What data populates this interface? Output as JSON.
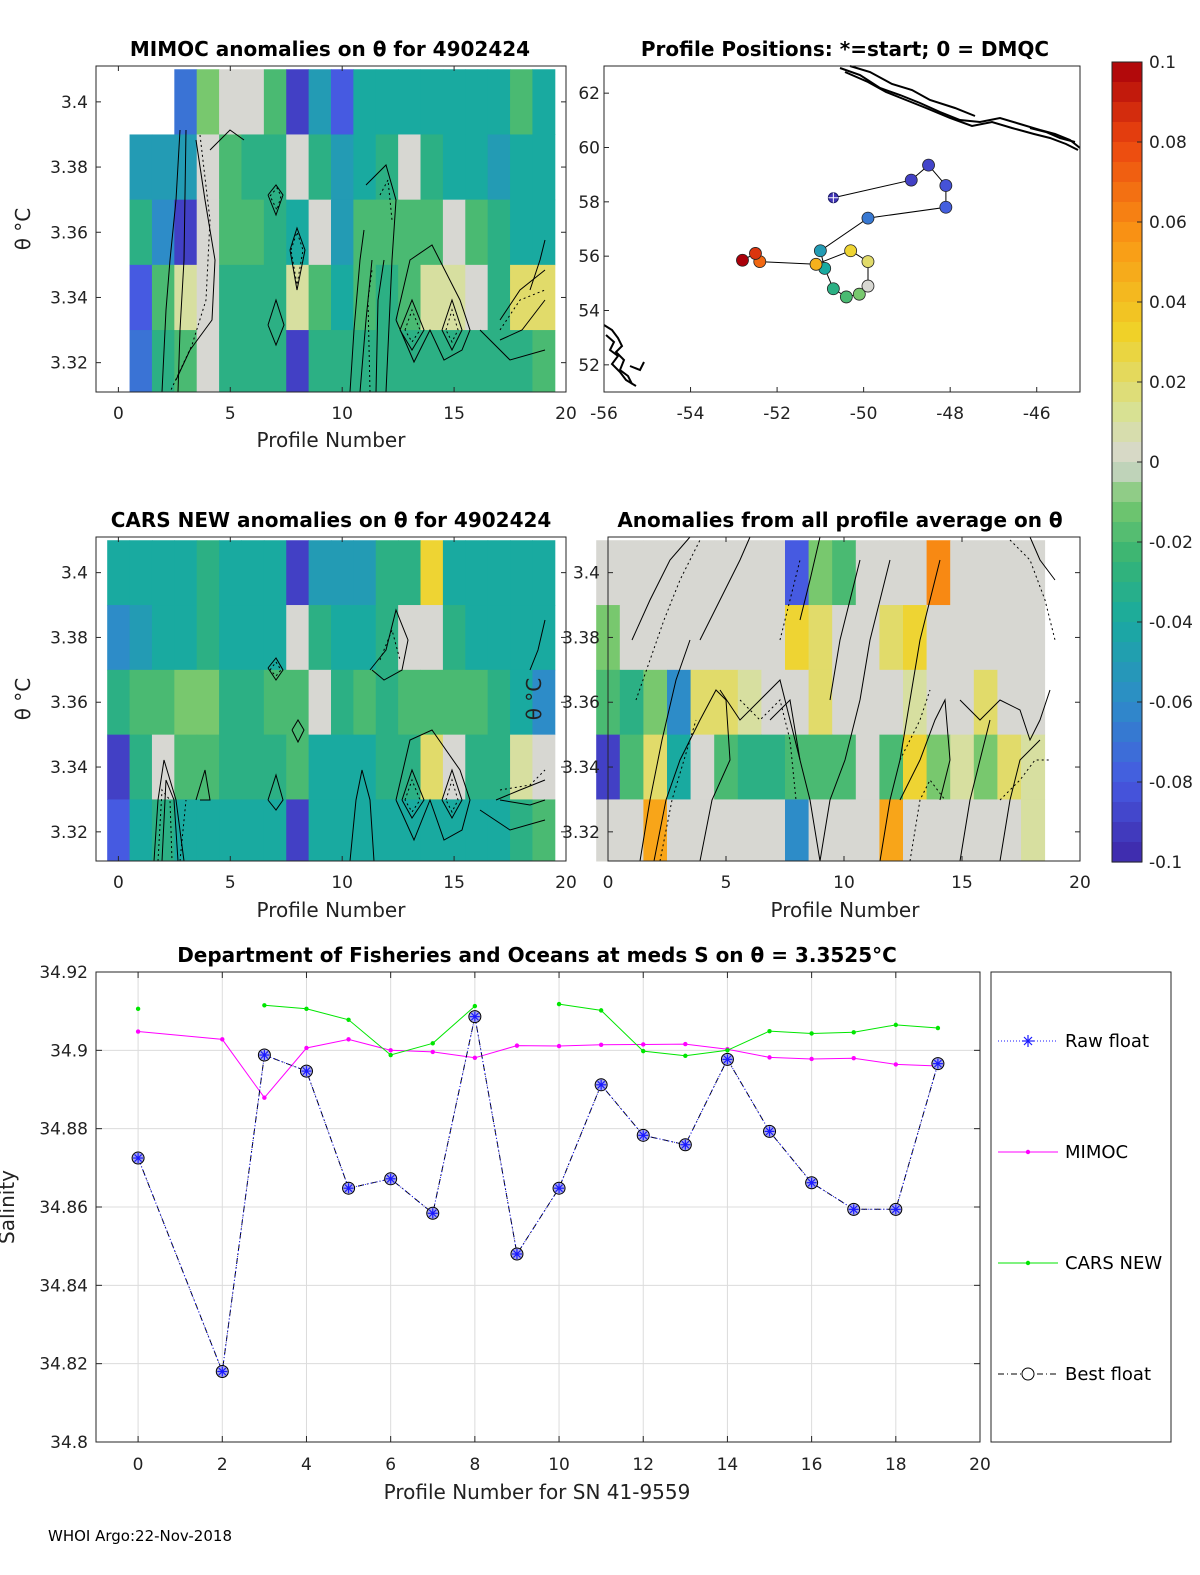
{
  "footer": "WHOI Argo:22-Nov-2018",
  "colorbar": {
    "ticks": [
      "0.1",
      "0.08",
      "0.06",
      "0.04",
      "0.02",
      "0",
      "-0.02",
      "-0.04",
      "-0.06",
      "-0.08",
      "-0.1"
    ],
    "range": [
      -0.1,
      0.1
    ]
  },
  "chart_data": [
    {
      "id": "mimoc",
      "type": "heatmap",
      "title": "MIMOC anomalies on θ  for 4902424",
      "xlabel": "Profile Number",
      "ylabel": "θ °C",
      "xticks": [
        "0",
        "5",
        "10",
        "15",
        "20"
      ],
      "yticks": [
        "3.4",
        "3.38",
        "3.36",
        "3.34",
        "3.32"
      ],
      "xlim": [
        -1,
        20
      ],
      "ylim": [
        3.311,
        3.411
      ],
      "theta_rows": [
        3.4,
        3.38,
        3.36,
        3.34,
        3.32
      ],
      "values": [
        [
          null,
          null,
          null,
          -0.07,
          -0.01,
          0.0,
          0.0,
          -0.02,
          -0.09,
          -0.05,
          -0.08,
          -0.04,
          -0.04,
          -0.04,
          -0.04,
          -0.04,
          -0.04,
          -0.04,
          -0.02,
          -0.04
        ],
        [
          null,
          -0.05,
          -0.05,
          -0.05,
          0.0,
          -0.02,
          -0.03,
          -0.03,
          0.0,
          -0.03,
          -0.05,
          -0.04,
          -0.03,
          0.0,
          -0.03,
          -0.04,
          -0.04,
          -0.05,
          -0.04,
          -0.04
        ],
        [
          null,
          -0.03,
          -0.06,
          -0.09,
          0.0,
          -0.02,
          -0.02,
          -0.03,
          -0.04,
          0.0,
          -0.05,
          -0.02,
          -0.02,
          -0.02,
          -0.02,
          0.0,
          -0.02,
          -0.03,
          -0.04,
          -0.04
        ],
        [
          null,
          -0.08,
          -0.02,
          0.01,
          0.0,
          -0.03,
          -0.03,
          -0.03,
          0.01,
          -0.02,
          -0.04,
          -0.02,
          -0.03,
          -0.02,
          0.01,
          0.01,
          0.0,
          -0.03,
          0.02,
          0.02
        ],
        [
          null,
          -0.07,
          -0.03,
          -0.02,
          0.0,
          -0.03,
          -0.03,
          -0.03,
          -0.09,
          -0.03,
          -0.03,
          -0.03,
          -0.03,
          -0.03,
          -0.03,
          -0.03,
          -0.03,
          -0.03,
          -0.03,
          -0.02
        ]
      ]
    },
    {
      "id": "positions",
      "type": "scatter",
      "title": "Profile Positions: *=start; 0 = DMQC",
      "xticks": [
        "-56",
        "-54",
        "-52",
        "-50",
        "-48",
        "-46"
      ],
      "yticks": [
        "62",
        "60",
        "58",
        "56",
        "54",
        "52"
      ],
      "xlim": [
        -56.0,
        -45.0
      ],
      "ylim": [
        51.0,
        63.0
      ],
      "points": [
        {
          "lon": -50.7,
          "lat": 58.15,
          "v": -0.095
        },
        {
          "lon": -48.9,
          "lat": 58.8,
          "v": -0.09
        },
        {
          "lon": -48.5,
          "lat": 59.35,
          "v": -0.088
        },
        {
          "lon": -48.1,
          "lat": 58.6,
          "v": -0.083
        },
        {
          "lon": -48.1,
          "lat": 57.8,
          "v": -0.078
        },
        {
          "lon": -49.9,
          "lat": 57.4,
          "v": -0.068
        },
        {
          "lon": -51.0,
          "lat": 56.2,
          "v": -0.05
        },
        {
          "lon": -50.9,
          "lat": 55.55,
          "v": -0.04
        },
        {
          "lon": -50.7,
          "lat": 54.8,
          "v": -0.03
        },
        {
          "lon": -50.4,
          "lat": 54.5,
          "v": -0.02
        },
        {
          "lon": -50.1,
          "lat": 54.6,
          "v": -0.01
        },
        {
          "lon": -49.9,
          "lat": 54.9,
          "v": 0.0
        },
        {
          "lon": -49.9,
          "lat": 55.8,
          "v": 0.02
        },
        {
          "lon": -50.3,
          "lat": 56.2,
          "v": 0.03
        },
        {
          "lon": -51.1,
          "lat": 55.7,
          "v": 0.045
        },
        {
          "lon": -52.4,
          "lat": 55.8,
          "v": 0.07
        },
        {
          "lon": -52.5,
          "lat": 56.1,
          "v": 0.085
        },
        {
          "lon": -52.8,
          "lat": 55.85,
          "v": 0.1
        }
      ]
    },
    {
      "id": "cars",
      "type": "heatmap",
      "title": "CARS NEW anomalies on θ for 4902424",
      "xlabel": "Profile Number",
      "ylabel": "θ °C",
      "xticks": [
        "0",
        "5",
        "10",
        "15",
        "20"
      ],
      "yticks": [
        "3.4",
        "3.38",
        "3.36",
        "3.34",
        "3.32"
      ],
      "xlim": [
        -1,
        20
      ],
      "ylim": [
        3.311,
        3.411
      ],
      "theta_rows": [
        3.4,
        3.38,
        3.36,
        3.34,
        3.32
      ],
      "values": [
        [
          -0.04,
          -0.04,
          -0.04,
          -0.04,
          -0.03,
          -0.04,
          -0.04,
          -0.04,
          -0.09,
          -0.05,
          -0.05,
          -0.05,
          -0.03,
          -0.03,
          0.03,
          -0.04,
          -0.04,
          -0.04,
          -0.04,
          -0.04
        ],
        [
          -0.06,
          -0.05,
          -0.04,
          -0.04,
          -0.03,
          -0.04,
          -0.04,
          -0.04,
          0.0,
          -0.03,
          -0.04,
          -0.04,
          -0.03,
          0.0,
          0.0,
          -0.03,
          -0.04,
          -0.04,
          -0.04,
          -0.04
        ],
        [
          -0.03,
          -0.02,
          -0.02,
          -0.01,
          -0.01,
          -0.03,
          -0.03,
          -0.02,
          -0.02,
          0.0,
          -0.03,
          -0.02,
          -0.03,
          -0.02,
          -0.02,
          -0.02,
          -0.02,
          -0.03,
          -0.04,
          -0.06
        ],
        [
          -0.09,
          -0.03,
          0.0,
          -0.02,
          -0.02,
          -0.03,
          -0.03,
          -0.03,
          -0.02,
          -0.04,
          -0.04,
          -0.04,
          -0.03,
          -0.03,
          0.02,
          0.0,
          -0.03,
          -0.03,
          0.01,
          0.0
        ],
        [
          -0.08,
          -0.04,
          -0.03,
          -0.04,
          -0.04,
          -0.04,
          -0.04,
          -0.04,
          -0.09,
          -0.04,
          -0.04,
          -0.04,
          -0.04,
          -0.04,
          -0.04,
          -0.04,
          -0.04,
          -0.04,
          -0.03,
          -0.02
        ]
      ]
    },
    {
      "id": "allavg",
      "type": "heatmap",
      "title": "Anomalies from all profile average on θ",
      "xlabel": "Profile Number",
      "ylabel": "θ °C",
      "xticks": [
        "0",
        "5",
        "10",
        "15",
        "20"
      ],
      "yticks": [
        "3.4",
        "3.38",
        "3.36",
        "3.34",
        "3.32"
      ],
      "xlim": [
        0,
        20
      ],
      "ylim": [
        3.311,
        3.411
      ],
      "theta_rows": [
        3.4,
        3.38,
        3.36,
        3.34,
        3.32
      ],
      "values": [
        [
          0.0,
          0.0,
          0.0,
          0.0,
          0.0,
          0.0,
          0.0,
          0.0,
          -0.08,
          -0.01,
          -0.02,
          0.0,
          0.0,
          0.0,
          0.06,
          0.0,
          0.0,
          0.0,
          0.0,
          null
        ],
        [
          -0.01,
          0.0,
          0.0,
          0.0,
          0.0,
          0.0,
          0.0,
          0.0,
          0.03,
          0.02,
          0.0,
          0.0,
          0.02,
          0.03,
          0.0,
          0.0,
          0.0,
          0.0,
          0.0,
          null
        ],
        [
          -0.02,
          -0.03,
          -0.01,
          -0.06,
          0.02,
          0.02,
          0.01,
          0.0,
          0.0,
          0.02,
          0.0,
          0.0,
          0.0,
          0.01,
          0.0,
          0.0,
          0.02,
          0.0,
          0.0,
          null
        ],
        [
          -0.09,
          -0.02,
          0.02,
          -0.04,
          0.0,
          -0.02,
          -0.03,
          -0.03,
          -0.02,
          -0.02,
          -0.02,
          0.0,
          -0.02,
          0.03,
          -0.01,
          0.01,
          -0.01,
          0.02,
          0.01,
          null
        ],
        [
          0.0,
          0.0,
          0.05,
          0.0,
          0.0,
          0.0,
          0.0,
          0.0,
          -0.06,
          0.0,
          0.0,
          0.0,
          0.05,
          0.0,
          0.0,
          0.0,
          0.0,
          0.0,
          0.01,
          null
        ]
      ]
    },
    {
      "id": "salinity",
      "type": "line",
      "title": "Department of Fisheries and Oceans at meds S on θ = 3.3525°C",
      "xlabel": "Profile Number for SN 41-9559",
      "ylabel": "Salinity",
      "xticks": [
        "0",
        "2",
        "4",
        "6",
        "8",
        "10",
        "12",
        "14",
        "16",
        "18",
        "20"
      ],
      "yticks": [
        "34.92",
        "34.9",
        "34.88",
        "34.86",
        "34.84",
        "34.82",
        "34.8"
      ],
      "xlim": [
        -1,
        20
      ],
      "ylim": [
        34.8,
        34.92
      ],
      "legend": [
        "Raw float",
        "MIMOC",
        "CARS NEW",
        "Best float"
      ],
      "series": [
        {
          "name": "Raw float",
          "color": "#1a1aff",
          "x": [
            0,
            2,
            3,
            4,
            5,
            6,
            7,
            8,
            9,
            10,
            11,
            12,
            13,
            14,
            15,
            16,
            17,
            18,
            19
          ],
          "values": [
            34.8725,
            34.818,
            34.8988,
            34.8947,
            34.8648,
            34.8672,
            34.8584,
            34.9086,
            34.848,
            34.8648,
            34.8912,
            34.8783,
            34.8759,
            34.8977,
            34.8793,
            34.8662,
            34.8594,
            34.8594,
            34.8966
          ]
        },
        {
          "name": "MIMOC",
          "color": "#ff00ff",
          "x": [
            0,
            2,
            3,
            4,
            5,
            6,
            7,
            8,
            9,
            10,
            11,
            12,
            13,
            14,
            15,
            16,
            17,
            18,
            19
          ],
          "values": [
            34.9048,
            34.9028,
            34.8879,
            34.9006,
            34.9028,
            34.9,
            34.8996,
            34.8981,
            34.9012,
            34.9011,
            34.9014,
            34.9015,
            34.9016,
            34.9003,
            34.8982,
            34.8978,
            34.898,
            34.8964,
            34.896
          ]
        },
        {
          "name": "CARS NEW",
          "color": "#00e600",
          "segments": [
            {
              "x": [
                0
              ],
              "values": [
                34.9106
              ]
            },
            {
              "x": [
                3,
                4,
                5,
                6,
                7,
                8
              ],
              "values": [
                34.9115,
                34.9106,
                34.9078,
                34.8988,
                34.9018,
                34.9113
              ]
            },
            {
              "x": [
                10,
                11,
                12,
                13,
                14,
                15,
                16,
                17,
                18,
                19
              ],
              "values": [
                34.9118,
                34.9102,
                34.8998,
                34.8986,
                34.9,
                34.9049,
                34.9043,
                34.9046,
                34.9065,
                34.9057
              ]
            }
          ]
        },
        {
          "name": "Best float",
          "color": "#000000",
          "x": [
            0,
            2,
            3,
            4,
            5,
            6,
            7,
            8,
            9,
            10,
            11,
            12,
            13,
            14,
            15,
            16,
            17,
            18,
            19
          ],
          "values": [
            34.8725,
            34.818,
            34.8988,
            34.8947,
            34.8648,
            34.8672,
            34.8584,
            34.9086,
            34.848,
            34.8648,
            34.8912,
            34.8783,
            34.8759,
            34.8977,
            34.8793,
            34.8662,
            34.8594,
            34.8594,
            34.8966
          ]
        }
      ]
    }
  ]
}
